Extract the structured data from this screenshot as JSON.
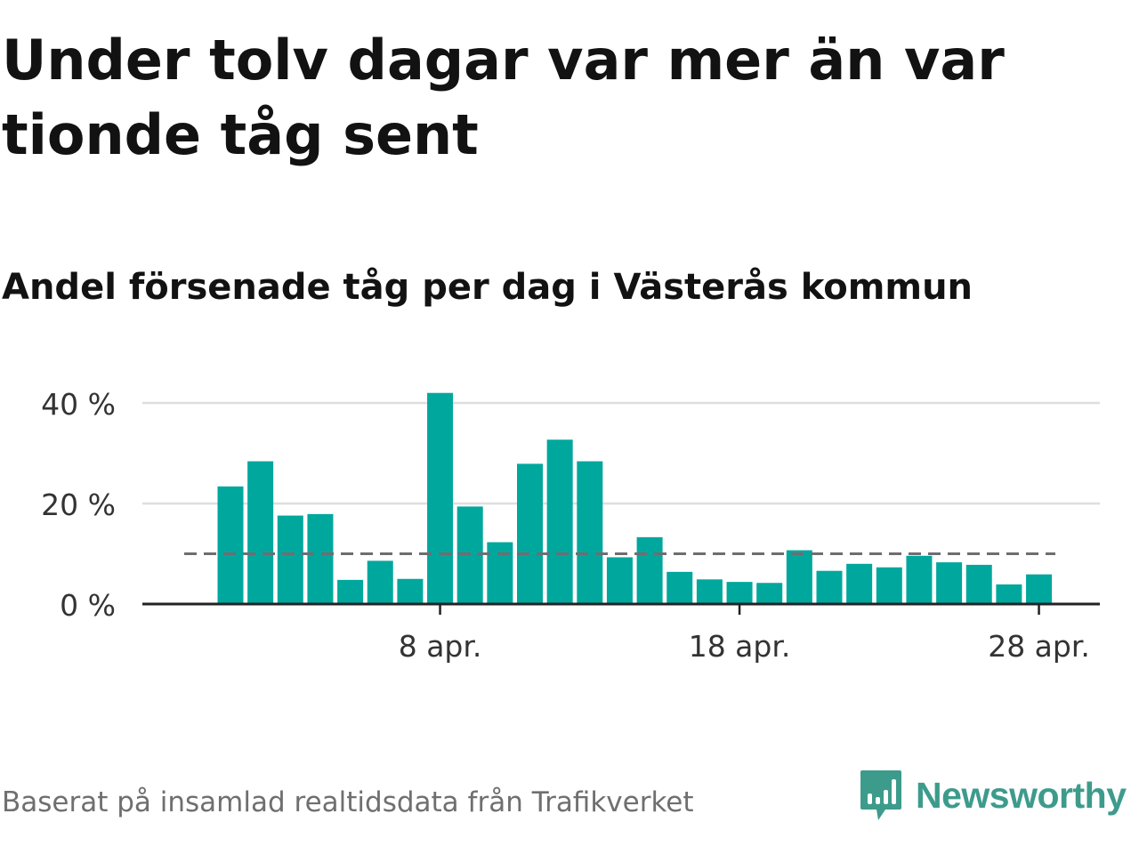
{
  "headline": "Under tolv dagar var mer än var tionde tåg sent",
  "subtitle": "Andel försenade tåg per dag i Västerås kommun",
  "footer": "Baserat på insamlad realtidsdata från Trafikverket",
  "brand": {
    "name": "Newsworthy",
    "color": "#3d9b8c",
    "icon": "newsworthy-logo-icon"
  },
  "colors": {
    "bar": "#00a79d",
    "reference_line": "#6e6e72",
    "grid": "#dedede",
    "axis": "#222222"
  },
  "chart_data": {
    "type": "bar",
    "x_unit": "day of April",
    "x": [
      1,
      2,
      3,
      4,
      5,
      6,
      7,
      8,
      9,
      10,
      11,
      12,
      13,
      14,
      15,
      16,
      17,
      18,
      19,
      20,
      21,
      22,
      23,
      24,
      25,
      26,
      27,
      28,
      29
    ],
    "values": [
      23.4,
      28.4,
      17.6,
      17.9,
      4.8,
      8.6,
      5.0,
      42.0,
      19.4,
      12.3,
      27.9,
      32.7,
      28.4,
      9.3,
      13.3,
      6.4,
      4.9,
      4.4,
      4.2,
      10.7,
      6.6,
      8.0,
      7.3,
      9.6,
      8.3,
      7.8,
      3.9,
      5.9,
      null
    ],
    "reference_line": 10,
    "yticks": [
      {
        "value": 0,
        "label": "0 %"
      },
      {
        "value": 20,
        "label": "20 %"
      },
      {
        "value": 40,
        "label": "40 %"
      }
    ],
    "xticks": [
      {
        "day": 8,
        "label": "8 apr."
      },
      {
        "day": 18,
        "label": "18 apr."
      },
      {
        "day": 28,
        "label": "28 apr."
      }
    ],
    "ylim": [
      0,
      42
    ],
    "grid": true,
    "legend": "none"
  }
}
